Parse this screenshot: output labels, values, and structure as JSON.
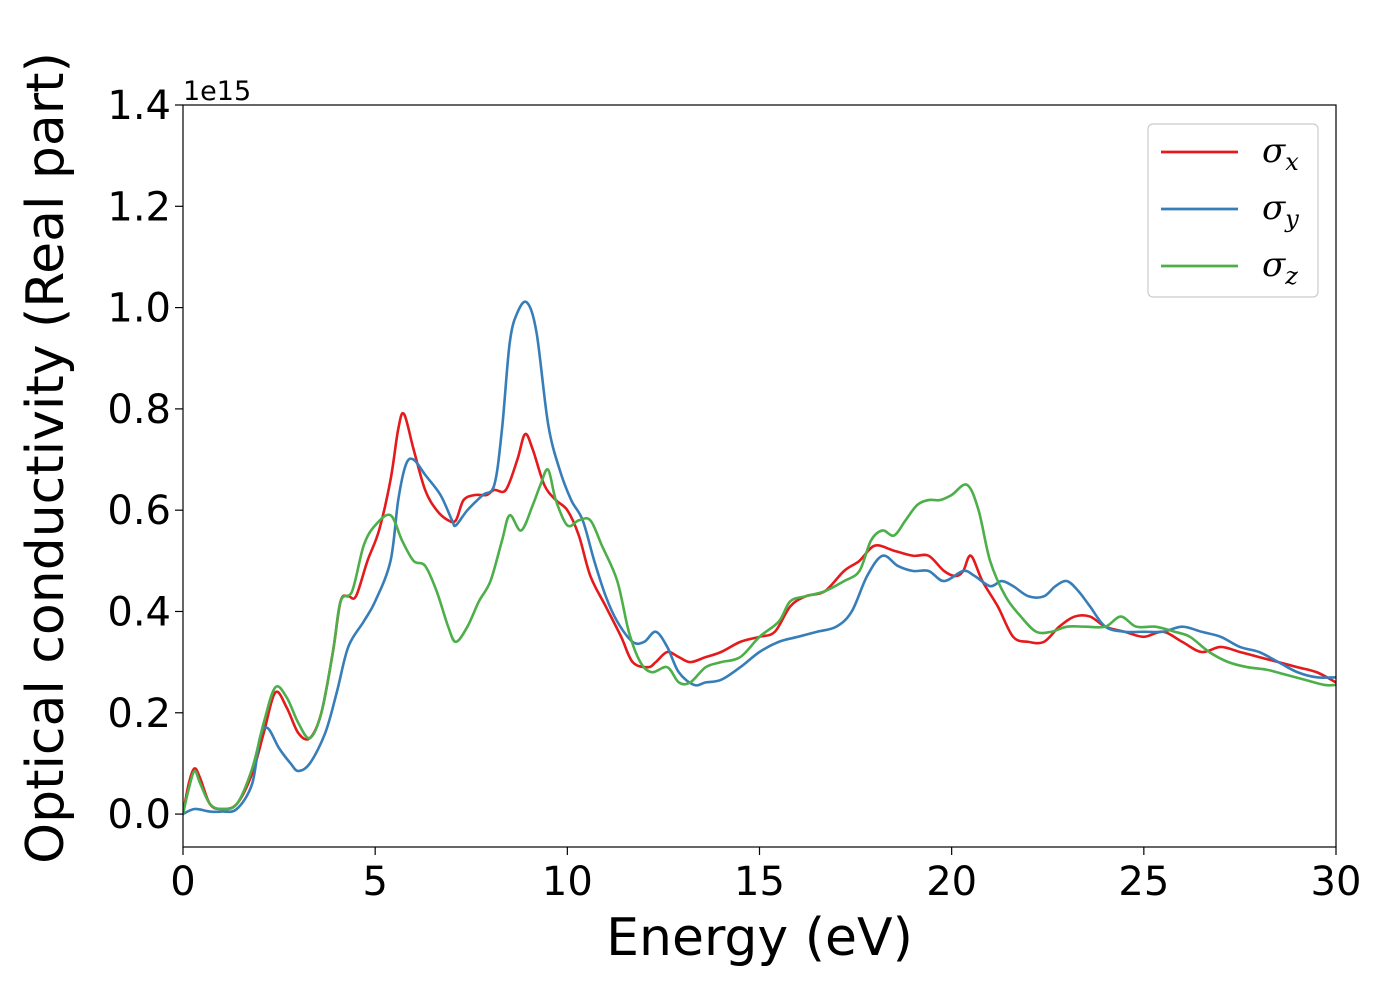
{
  "chart_data": {
    "type": "line",
    "xlabel": "Energy (eV)",
    "ylabel": "Optical conductivity (Real part)",
    "y_offset_label": "1e15",
    "xlim": [
      0,
      30
    ],
    "ylim": [
      -0.065,
      1.4
    ],
    "x_ticks": [
      0,
      5,
      10,
      15,
      20,
      25,
      30
    ],
    "x_tick_labels": [
      "0",
      "5",
      "10",
      "15",
      "20",
      "25",
      "30"
    ],
    "y_ticks": [
      0.0,
      0.2,
      0.4,
      0.6,
      0.8,
      1.0,
      1.2,
      1.4
    ],
    "y_tick_labels": [
      "0.0",
      "0.2",
      "0.4",
      "0.6",
      "0.8",
      "1.0",
      "1.2",
      "1.4"
    ],
    "grid": false,
    "legend_position": "top-right",
    "series": [
      {
        "name": "σ_x",
        "legend_symbol": "σ",
        "legend_subscript": "x",
        "color": "#e41a1c",
        "points": [
          [
            0,
            0.0
          ],
          [
            0.15,
            0.06
          ],
          [
            0.3,
            0.09
          ],
          [
            0.45,
            0.07
          ],
          [
            0.7,
            0.02
          ],
          [
            1.0,
            0.01
          ],
          [
            1.4,
            0.02
          ],
          [
            1.8,
            0.08
          ],
          [
            2.1,
            0.16
          ],
          [
            2.4,
            0.24
          ],
          [
            2.7,
            0.21
          ],
          [
            3.0,
            0.16
          ],
          [
            3.3,
            0.15
          ],
          [
            3.6,
            0.2
          ],
          [
            3.9,
            0.32
          ],
          [
            4.1,
            0.42
          ],
          [
            4.3,
            0.43
          ],
          [
            4.5,
            0.43
          ],
          [
            4.8,
            0.5
          ],
          [
            5.1,
            0.56
          ],
          [
            5.4,
            0.66
          ],
          [
            5.6,
            0.76
          ],
          [
            5.75,
            0.79
          ],
          [
            6.0,
            0.72
          ],
          [
            6.3,
            0.64
          ],
          [
            6.6,
            0.6
          ],
          [
            6.9,
            0.58
          ],
          [
            7.1,
            0.58
          ],
          [
            7.3,
            0.62
          ],
          [
            7.6,
            0.63
          ],
          [
            7.9,
            0.63
          ],
          [
            8.1,
            0.64
          ],
          [
            8.4,
            0.64
          ],
          [
            8.7,
            0.7
          ],
          [
            8.9,
            0.75
          ],
          [
            9.1,
            0.72
          ],
          [
            9.4,
            0.65
          ],
          [
            9.7,
            0.62
          ],
          [
            10.0,
            0.6
          ],
          [
            10.3,
            0.55
          ],
          [
            10.6,
            0.47
          ],
          [
            11.0,
            0.41
          ],
          [
            11.4,
            0.35
          ],
          [
            11.7,
            0.3
          ],
          [
            12.1,
            0.29
          ],
          [
            12.3,
            0.3
          ],
          [
            12.6,
            0.32
          ],
          [
            12.9,
            0.31
          ],
          [
            13.2,
            0.3
          ],
          [
            13.6,
            0.31
          ],
          [
            14.0,
            0.32
          ],
          [
            14.5,
            0.34
          ],
          [
            15.0,
            0.35
          ],
          [
            15.4,
            0.36
          ],
          [
            15.8,
            0.41
          ],
          [
            16.2,
            0.43
          ],
          [
            16.7,
            0.44
          ],
          [
            17.2,
            0.48
          ],
          [
            17.6,
            0.5
          ],
          [
            18.0,
            0.53
          ],
          [
            18.5,
            0.52
          ],
          [
            19.0,
            0.51
          ],
          [
            19.4,
            0.51
          ],
          [
            19.8,
            0.48
          ],
          [
            20.1,
            0.47
          ],
          [
            20.3,
            0.48
          ],
          [
            20.5,
            0.51
          ],
          [
            20.8,
            0.46
          ],
          [
            21.2,
            0.41
          ],
          [
            21.6,
            0.35
          ],
          [
            22.0,
            0.34
          ],
          [
            22.4,
            0.34
          ],
          [
            22.8,
            0.37
          ],
          [
            23.2,
            0.39
          ],
          [
            23.6,
            0.39
          ],
          [
            24.0,
            0.37
          ],
          [
            24.5,
            0.36
          ],
          [
            25.0,
            0.35
          ],
          [
            25.5,
            0.36
          ],
          [
            26.0,
            0.34
          ],
          [
            26.5,
            0.32
          ],
          [
            27.0,
            0.33
          ],
          [
            27.5,
            0.32
          ],
          [
            28.0,
            0.31
          ],
          [
            28.5,
            0.3
          ],
          [
            29.0,
            0.29
          ],
          [
            29.5,
            0.28
          ],
          [
            30.0,
            0.26
          ]
        ]
      },
      {
        "name": "σ_y",
        "legend_symbol": "σ",
        "legend_subscript": "y",
        "color": "#377eb8",
        "points": [
          [
            0,
            0.0
          ],
          [
            0.3,
            0.01
          ],
          [
            0.7,
            0.005
          ],
          [
            1.0,
            0.005
          ],
          [
            1.4,
            0.01
          ],
          [
            1.8,
            0.06
          ],
          [
            2.0,
            0.15
          ],
          [
            2.2,
            0.17
          ],
          [
            2.5,
            0.13
          ],
          [
            2.8,
            0.1
          ],
          [
            3.0,
            0.085
          ],
          [
            3.3,
            0.1
          ],
          [
            3.7,
            0.16
          ],
          [
            4.0,
            0.24
          ],
          [
            4.3,
            0.33
          ],
          [
            4.7,
            0.38
          ],
          [
            5.0,
            0.42
          ],
          [
            5.4,
            0.5
          ],
          [
            5.6,
            0.62
          ],
          [
            5.8,
            0.69
          ],
          [
            6.0,
            0.7
          ],
          [
            6.3,
            0.67
          ],
          [
            6.7,
            0.63
          ],
          [
            7.0,
            0.58
          ],
          [
            7.1,
            0.57
          ],
          [
            7.4,
            0.6
          ],
          [
            7.8,
            0.63
          ],
          [
            8.1,
            0.65
          ],
          [
            8.3,
            0.76
          ],
          [
            8.5,
            0.93
          ],
          [
            8.7,
            0.99
          ],
          [
            8.95,
            1.01
          ],
          [
            9.2,
            0.95
          ],
          [
            9.5,
            0.77
          ],
          [
            9.8,
            0.68
          ],
          [
            10.1,
            0.62
          ],
          [
            10.4,
            0.58
          ],
          [
            10.7,
            0.5
          ],
          [
            11.0,
            0.43
          ],
          [
            11.3,
            0.38
          ],
          [
            11.7,
            0.34
          ],
          [
            12.0,
            0.34
          ],
          [
            12.3,
            0.36
          ],
          [
            12.6,
            0.33
          ],
          [
            12.9,
            0.28
          ],
          [
            13.3,
            0.255
          ],
          [
            13.6,
            0.26
          ],
          [
            14.0,
            0.265
          ],
          [
            14.5,
            0.29
          ],
          [
            15.0,
            0.32
          ],
          [
            15.5,
            0.34
          ],
          [
            16.0,
            0.35
          ],
          [
            16.5,
            0.36
          ],
          [
            17.0,
            0.37
          ],
          [
            17.4,
            0.4
          ],
          [
            17.8,
            0.47
          ],
          [
            18.2,
            0.51
          ],
          [
            18.6,
            0.49
          ],
          [
            19.0,
            0.48
          ],
          [
            19.4,
            0.48
          ],
          [
            19.8,
            0.46
          ],
          [
            20.3,
            0.48
          ],
          [
            20.6,
            0.47
          ],
          [
            21.0,
            0.45
          ],
          [
            21.3,
            0.46
          ],
          [
            21.6,
            0.45
          ],
          [
            22.0,
            0.43
          ],
          [
            22.4,
            0.43
          ],
          [
            22.7,
            0.45
          ],
          [
            23.0,
            0.46
          ],
          [
            23.3,
            0.44
          ],
          [
            23.6,
            0.41
          ],
          [
            24.0,
            0.37
          ],
          [
            24.5,
            0.36
          ],
          [
            25.0,
            0.36
          ],
          [
            25.5,
            0.36
          ],
          [
            26.0,
            0.37
          ],
          [
            26.5,
            0.36
          ],
          [
            27.0,
            0.35
          ],
          [
            27.5,
            0.33
          ],
          [
            28.0,
            0.32
          ],
          [
            28.5,
            0.3
          ],
          [
            29.0,
            0.28
          ],
          [
            29.5,
            0.27
          ],
          [
            30.0,
            0.27
          ]
        ]
      },
      {
        "name": "σ_z",
        "legend_symbol": "σ",
        "legend_subscript": "z",
        "color": "#4daf4a",
        "points": [
          [
            0,
            0.0
          ],
          [
            0.15,
            0.05
          ],
          [
            0.3,
            0.085
          ],
          [
            0.45,
            0.06
          ],
          [
            0.7,
            0.02
          ],
          [
            1.0,
            0.01
          ],
          [
            1.4,
            0.02
          ],
          [
            1.8,
            0.09
          ],
          [
            2.1,
            0.18
          ],
          [
            2.4,
            0.25
          ],
          [
            2.7,
            0.23
          ],
          [
            3.0,
            0.18
          ],
          [
            3.3,
            0.15
          ],
          [
            3.6,
            0.2
          ],
          [
            3.9,
            0.32
          ],
          [
            4.1,
            0.42
          ],
          [
            4.4,
            0.44
          ],
          [
            4.7,
            0.53
          ],
          [
            5.0,
            0.57
          ],
          [
            5.4,
            0.59
          ],
          [
            5.7,
            0.54
          ],
          [
            6.0,
            0.5
          ],
          [
            6.3,
            0.49
          ],
          [
            6.6,
            0.44
          ],
          [
            6.9,
            0.37
          ],
          [
            7.1,
            0.34
          ],
          [
            7.4,
            0.37
          ],
          [
            7.7,
            0.42
          ],
          [
            8.0,
            0.46
          ],
          [
            8.3,
            0.54
          ],
          [
            8.5,
            0.59
          ],
          [
            8.8,
            0.56
          ],
          [
            9.1,
            0.61
          ],
          [
            9.3,
            0.65
          ],
          [
            9.5,
            0.68
          ],
          [
            9.7,
            0.62
          ],
          [
            10.0,
            0.57
          ],
          [
            10.3,
            0.58
          ],
          [
            10.6,
            0.58
          ],
          [
            10.9,
            0.53
          ],
          [
            11.3,
            0.46
          ],
          [
            11.6,
            0.36
          ],
          [
            11.9,
            0.3
          ],
          [
            12.2,
            0.28
          ],
          [
            12.6,
            0.29
          ],
          [
            12.9,
            0.26
          ],
          [
            13.2,
            0.26
          ],
          [
            13.6,
            0.29
          ],
          [
            14.0,
            0.3
          ],
          [
            14.5,
            0.31
          ],
          [
            15.0,
            0.35
          ],
          [
            15.5,
            0.38
          ],
          [
            15.8,
            0.42
          ],
          [
            16.2,
            0.43
          ],
          [
            16.7,
            0.44
          ],
          [
            17.2,
            0.46
          ],
          [
            17.6,
            0.48
          ],
          [
            17.9,
            0.54
          ],
          [
            18.2,
            0.56
          ],
          [
            18.5,
            0.55
          ],
          [
            18.8,
            0.58
          ],
          [
            19.1,
            0.61
          ],
          [
            19.4,
            0.62
          ],
          [
            19.7,
            0.62
          ],
          [
            20.0,
            0.63
          ],
          [
            20.4,
            0.65
          ],
          [
            20.7,
            0.6
          ],
          [
            21.0,
            0.5
          ],
          [
            21.4,
            0.43
          ],
          [
            21.8,
            0.39
          ],
          [
            22.2,
            0.36
          ],
          [
            22.6,
            0.36
          ],
          [
            23.0,
            0.37
          ],
          [
            23.5,
            0.37
          ],
          [
            24.0,
            0.37
          ],
          [
            24.4,
            0.39
          ],
          [
            24.8,
            0.37
          ],
          [
            25.3,
            0.37
          ],
          [
            25.8,
            0.36
          ],
          [
            26.2,
            0.35
          ],
          [
            26.7,
            0.32
          ],
          [
            27.2,
            0.3
          ],
          [
            27.7,
            0.29
          ],
          [
            28.2,
            0.285
          ],
          [
            28.7,
            0.275
          ],
          [
            29.2,
            0.265
          ],
          [
            29.7,
            0.255
          ],
          [
            30.0,
            0.255
          ]
        ]
      }
    ]
  }
}
